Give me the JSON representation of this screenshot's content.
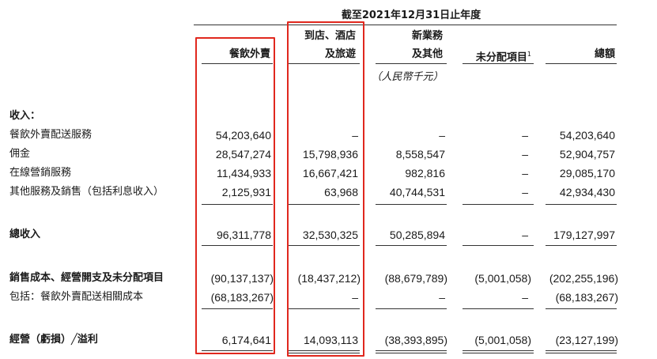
{
  "period_header": "截至2021年12月31日止年度",
  "columns": [
    {
      "line1": "",
      "line2": "餐飲外賣"
    },
    {
      "line1": "到店、酒店",
      "line2": "及旅遊"
    },
    {
      "line1": "新業務",
      "line2": "及其他"
    },
    {
      "line1": "",
      "line2": "未分配項目"
    },
    {
      "line1": "",
      "line2": "總額"
    }
  ],
  "footnote_mark": "1",
  "unit": "（人民幣千元）",
  "revenue_heading": "收入：",
  "rows": [
    {
      "label": "餐飲外賣配送服務",
      "values": [
        "54,203,640",
        "–",
        "–",
        "–",
        "54,203,640"
      ]
    },
    {
      "label": "佣金",
      "values": [
        "28,547,274",
        "15,798,936",
        "8,558,547",
        "–",
        "52,904,757"
      ]
    },
    {
      "label": "在線營銷服務",
      "values": [
        "11,434,933",
        "16,667,421",
        "982,816",
        "–",
        "29,085,170"
      ]
    },
    {
      "label": "其他服務及銷售（包括利息收入）",
      "values": [
        "2,125,931",
        "63,968",
        "40,744,531",
        "–",
        "42,934,430"
      ]
    },
    {
      "label": "總收入",
      "values": [
        "96,311,778",
        "32,530,325",
        "50,285,894",
        "–",
        "179,127,997"
      ]
    },
    {
      "label": "銷售成本、經營開支及未分配項目",
      "values": [
        "(90,137,137)",
        "(18,437,212)",
        "(88,679,789)",
        "(5,001,058)",
        "(202,255,196)"
      ]
    },
    {
      "label": "包括：餐飲外賣配送相關成本",
      "values": [
        "(68,183,267)",
        "–",
        "–",
        "–",
        "(68,183,267)"
      ]
    },
    {
      "label": "經營（虧損）╱溢利",
      "values": [
        "6,174,641",
        "14,093,113",
        "(38,393,895)",
        "(5,001,058)",
        "(23,127,199)"
      ]
    }
  ],
  "colors": {
    "highlight_box": "#e0281e",
    "text": "#1a1a1a"
  }
}
